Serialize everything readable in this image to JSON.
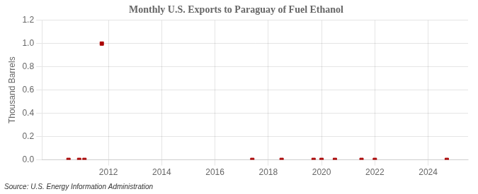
{
  "chart_data": {
    "type": "scatter",
    "title": "Monthly U.S. Exports to Paraguay of Fuel Ethanol",
    "ylabel": "Thousand Barrels",
    "annotation": "Source: U.S. Energy Information Administration",
    "x": [
      2010.5,
      2010.9,
      2011.1,
      2011.75,
      2017.4,
      2018.5,
      2019.7,
      2020.0,
      2020.5,
      2021.5,
      2022.0,
      2024.7
    ],
    "values": [
      0.0,
      0.0,
      0.0,
      1.0,
      0.0,
      0.0,
      0.0,
      0.0,
      0.0,
      0.0,
      0.0,
      0.0
    ],
    "color": "#aa0000",
    "marker": "square",
    "xlim": [
      2009.5,
      2025.5
    ],
    "xticks": [
      2012,
      2014,
      2016,
      2018,
      2020,
      2022,
      2024
    ],
    "ylim": [
      0,
      1.2
    ],
    "yticks": [
      {
        "value": 0,
        "label": "0.0"
      },
      0.2,
      0.4,
      0.6,
      0.8,
      {
        "value": 1,
        "label": "1.0"
      },
      1.2
    ],
    "grid": true
  }
}
